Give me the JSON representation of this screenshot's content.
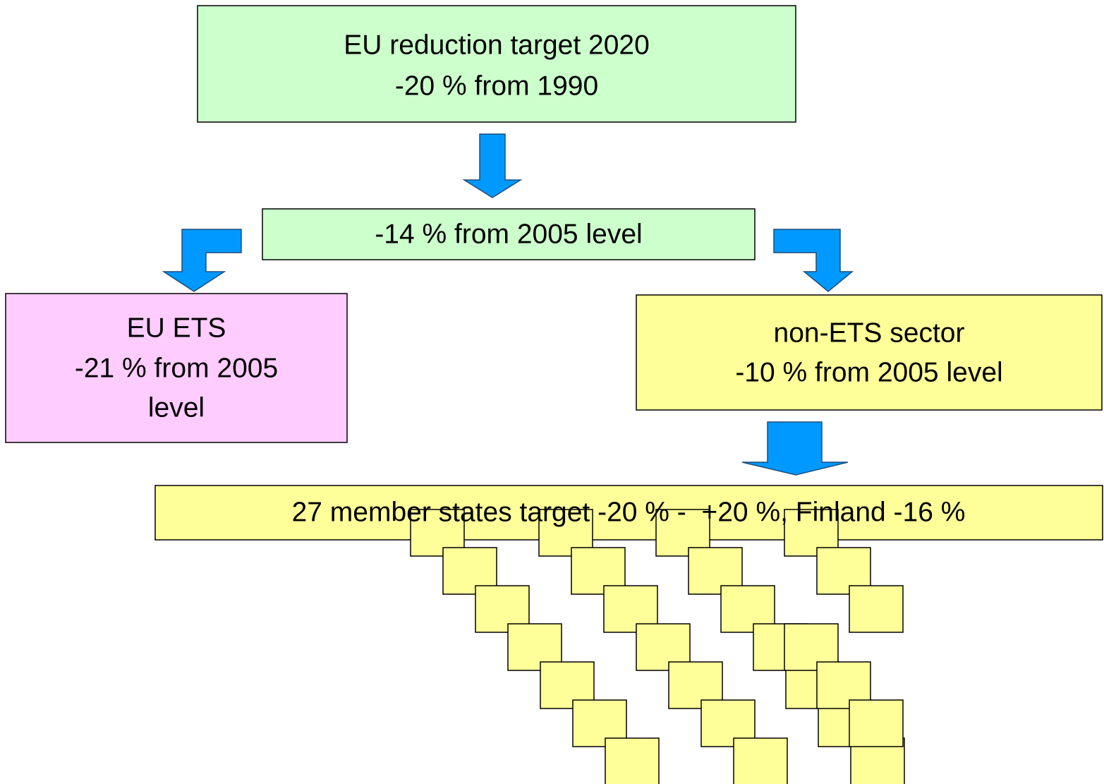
{
  "nodes": [
    {
      "lines": [
        "EU reduction target 2020",
        "-20 % from 1990"
      ]
    },
    {
      "lines": [
        "-14 % from 2005 level"
      ]
    },
    {
      "lines": [
        "EU ETS",
        "-21 % from 2005",
        "level"
      ]
    },
    {
      "lines": [
        "non-ETS sector",
        "-10 % from 2005 level"
      ]
    },
    {
      "lines": [
        "27 member states target -20 % -  +20 %, Finland -16 %"
      ]
    }
  ]
}
